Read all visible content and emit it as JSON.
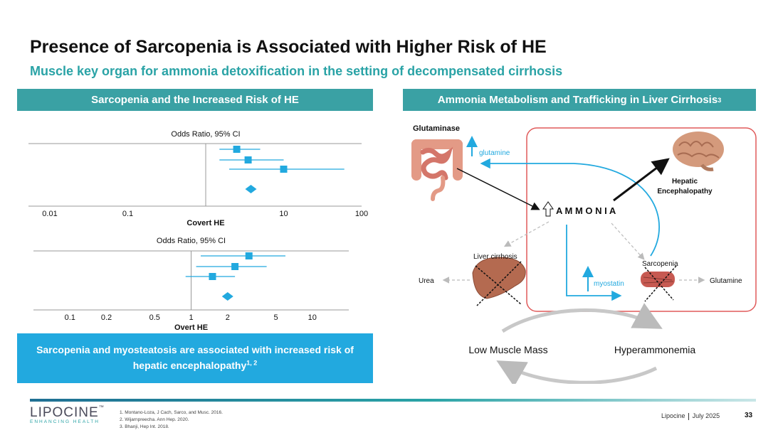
{
  "title": "Presence of Sarcopenia is Associated with Higher Risk of HE",
  "subtitle": "Muscle key organ for ammonia detoxification in the setting of decompensated cirrhosis",
  "left_panel": {
    "header": "Sarcopenia and the Increased Risk of HE",
    "callout_text": "Sarcopenia and myosteatosis are associated with increased risk of hepatic encephalopathy",
    "callout_sup": "1, 2"
  },
  "right_panel": {
    "header": "Ammonia Metabolism and Trafficking in Liver Cirrhosis",
    "header_sup": "3",
    "labels": {
      "glutaminase": "Glutaminase",
      "glutamine_lower": "glutamine",
      "hepatic_encephalopathy_1": "Hepatic",
      "hepatic_encephalopathy_2": "Encephalopathy",
      "ammonia": "A M M O N I A",
      "liver_cirrhosis": "Liver cirrhosis",
      "sarcopenia": "Sarcopenia",
      "urea": "Urea",
      "myostatin": "myostatin",
      "glutamine_upper": "Glutamine",
      "low_muscle_mass": "Low Muscle Mass",
      "hyperammonemia": "Hyperammonemia"
    },
    "colors": {
      "accent_blue": "#22a9df",
      "red_border": "#e05a5a",
      "teal": "#3aa1a4"
    }
  },
  "chart_data": [
    {
      "type": "forest",
      "title": "Odds Ratio, 95% CI",
      "xlabel": "Covert HE",
      "x_scale": "log",
      "xlim": [
        0.01,
        100
      ],
      "tick_labels": [
        "0.01",
        "0.1",
        "10",
        "100"
      ],
      "tick_values": [
        0.01,
        0.1,
        10,
        100
      ],
      "studies": [
        {
          "or": 2.5,
          "ci": [
            1.5,
            5.0
          ]
        },
        {
          "or": 3.5,
          "ci": [
            1.5,
            10.0
          ]
        },
        {
          "or": 10.0,
          "ci": [
            2.0,
            60.0
          ]
        }
      ],
      "pooled": {
        "or": 3.8
      }
    },
    {
      "type": "forest",
      "title": "Odds Ratio, 95% CI",
      "xlabel": "Overt HE",
      "x_scale": "log",
      "xlim": [
        0.075,
        20
      ],
      "tick_labels": [
        "0.1",
        "0.2",
        "0.5",
        "1",
        "2",
        "5",
        "10"
      ],
      "tick_values": [
        0.1,
        0.2,
        0.5,
        1,
        2,
        5,
        10
      ],
      "studies": [
        {
          "or": 3.0,
          "ci": [
            1.2,
            6.0
          ]
        },
        {
          "or": 2.3,
          "ci": [
            1.1,
            4.2
          ]
        },
        {
          "or": 1.5,
          "ci": [
            0.9,
            2.3
          ]
        }
      ],
      "pooled": {
        "or": 2.0
      }
    }
  ],
  "footer": {
    "logo_word": "LIPOCINE",
    "logo_tm": "™",
    "logo_tagline": "ENHANCING HEALTH",
    "refs": [
      "1. Montano-Loza, J Cach, Sarco, and Musc. 2016.",
      "2. Wijarnpreecha. Ann Hep. 2020.",
      "3. Bhanji, Hep Int. 2018."
    ],
    "company": "Lipocine",
    "date": "July 2025",
    "page": "33"
  }
}
